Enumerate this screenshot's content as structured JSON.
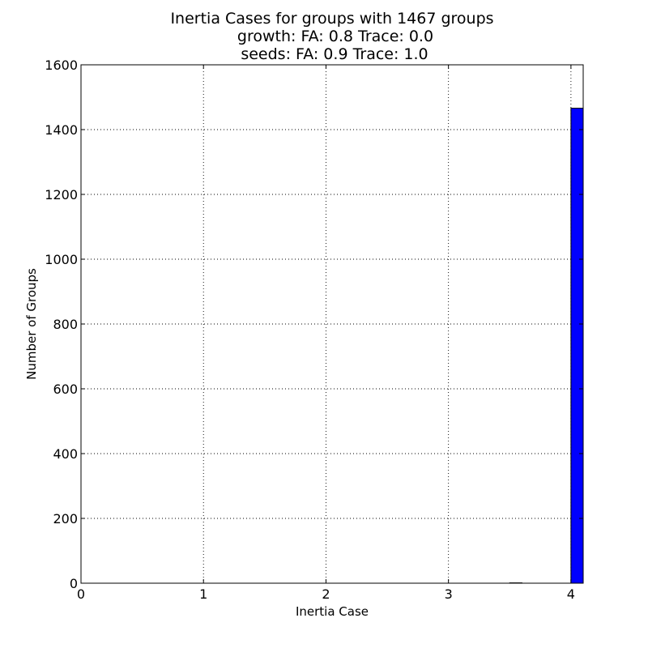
{
  "chart_data": {
    "type": "bar",
    "title_lines": [
      "Inertia Cases for groups with 1467 groups",
      "growth: FA: 0.8 Trace: 0.0",
      "seeds: FA: 0.9 Trace: 1.0"
    ],
    "xlabel": "Inertia Case",
    "ylabel": "Number of Groups",
    "xlim": [
      0,
      4.1
    ],
    "ylim": [
      0,
      1600
    ],
    "xticks": [
      0,
      1,
      2,
      3,
      4
    ],
    "yticks": [
      0,
      200,
      400,
      600,
      800,
      1000,
      1200,
      1400,
      1600
    ],
    "grid": true,
    "bin_width": 0.1,
    "bars": [
      {
        "x": 3.5,
        "value": 1
      },
      {
        "x": 4.0,
        "value": 1466
      }
    ],
    "colors": {
      "bar": "#0000ff",
      "edge": "#000000"
    }
  }
}
